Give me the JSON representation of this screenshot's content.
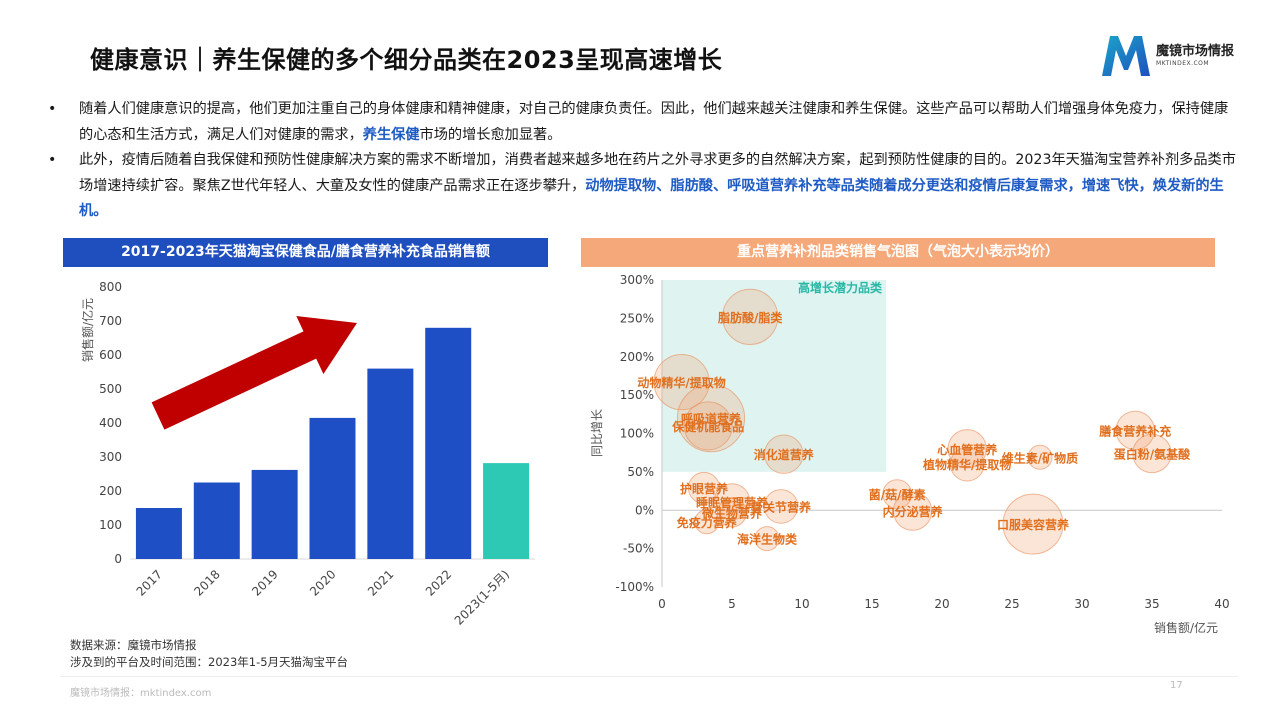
{
  "page": {
    "title": "健康意识｜养生保健的多个细分品类在2023呈现高速增长",
    "brand": "魔镜市场情报",
    "brand_site": "MKTINDEX.COM",
    "page_number": "17",
    "footer_site": "魔镜市场情报：mktindex.com",
    "source_line1": "数据来源：魔镜市场情报",
    "source_line2": "涉及到的平台及时间范围：2023年1-5月天猫淘宝平台"
  },
  "bullets": [
    {
      "dot": "•",
      "parts": [
        {
          "t": "随着人们健康意识的提高，他们更加注重自己的身体健康和精神健康，对自己的健康负责任。因此，他们越来越关注健康和养生保健。这些产品可以帮助人们增强身体免疫力，保持健康的心态和生活方式，满足人们对健康的需求，",
          "hl": false
        },
        {
          "t": "养生保健",
          "hl": true
        },
        {
          "t": "市场的增长愈加显著。",
          "hl": false
        }
      ]
    },
    {
      "dot": "•",
      "parts": [
        {
          "t": "此外，疫情后随着自我保健和预防性健康解决方案的需求不断增加，消费者越来越多地在药片之外寻求更多的自然解决方案，起到预防性健康的目的。2023年天猫淘宝营养补剂多品类市场增速持续扩容。聚焦Z世代年轻人、大童及女性的健康产品需求正在逐步攀升，",
          "hl": false
        },
        {
          "t": "动物提取物、脂肪酸、呼吸道营养补充等品类随着成分更迭和疫情后康复需求，增速飞快，焕发新的生机。",
          "hl": true
        }
      ]
    }
  ],
  "chart_data": [
    {
      "type": "bar",
      "title": "2017-2023年天猫淘宝保健食品/膳食营养补充食品销售额",
      "ylabel": "销售额/亿元",
      "ylim": [
        0,
        800
      ],
      "yticks": [
        0,
        100,
        200,
        300,
        400,
        500,
        600,
        700,
        800
      ],
      "categories": [
        "2017",
        "2018",
        "2019",
        "2020",
        "2021",
        "2022",
        "2023(1-5月)"
      ],
      "values": [
        150,
        225,
        262,
        415,
        560,
        680,
        282
      ],
      "colors": [
        "#1f4fc4",
        "#1f4fc4",
        "#1f4fc4",
        "#1f4fc4",
        "#1f4fc4",
        "#1f4fc4",
        "#2ec9b4"
      ],
      "arrow_color": "#c00000"
    },
    {
      "type": "scatter",
      "title": "重点营养补剂品类销售气泡图（气泡大小表示均价）",
      "xlabel": "销售额/亿元",
      "ylabel": "同比增长",
      "xlim": [
        0,
        40
      ],
      "ylim": [
        -100,
        300
      ],
      "xticks": [
        0,
        5,
        10,
        15,
        20,
        25,
        30,
        35,
        40
      ],
      "yticks": [
        "-100%",
        "-50%",
        "0%",
        "50%",
        "100%",
        "150%",
        "200%",
        "250%",
        "300%"
      ],
      "highlight_label": "高增长潜力品类",
      "highlight_region": {
        "x": [
          0,
          16
        ],
        "y": [
          50,
          300
        ]
      },
      "points": [
        {
          "name": "脂肪酸/脂类",
          "x": 6.3,
          "y": 252,
          "size": 2.3
        },
        {
          "name": "动物精华/提取物",
          "x": 1.4,
          "y": 167,
          "size": 2.3
        },
        {
          "name": "呼吸道营养",
          "x": 3.5,
          "y": 120,
          "size": 2.8
        },
        {
          "name": "保健机能食品",
          "x": 3.3,
          "y": 110,
          "size": 2.0
        },
        {
          "name": "消化道营养",
          "x": 8.7,
          "y": 73,
          "size": 1.6
        },
        {
          "name": "护眼营养",
          "x": 3.0,
          "y": 29,
          "size": 1.3
        },
        {
          "name": "睡眠管理营养",
          "x": 5.0,
          "y": 11,
          "size": 1.5
        },
        {
          "name": "骨关节营养",
          "x": 8.5,
          "y": 5,
          "size": 1.4
        },
        {
          "name": "微生物营养",
          "x": 5.0,
          "y": -3,
          "size": 1.2
        },
        {
          "name": "免疫力营养",
          "x": 3.2,
          "y": -15,
          "size": 1.0
        },
        {
          "name": "海洋生物类",
          "x": 7.5,
          "y": -37,
          "size": 1.0
        },
        {
          "name": "菌/菇/酵素",
          "x": 16.8,
          "y": 21,
          "size": 1.2
        },
        {
          "name": "内分泌营养",
          "x": 17.9,
          "y": -1,
          "size": 1.6
        },
        {
          "name": "心血管营养",
          "x": 21.8,
          "y": 80,
          "size": 1.6
        },
        {
          "name": "植物精华/提取物",
          "x": 21.8,
          "y": 60,
          "size": 1.4
        },
        {
          "name": "维生素/矿物质",
          "x": 27.0,
          "y": 69,
          "size": 1.0
        },
        {
          "name": "膳食营养补充",
          "x": 33.8,
          "y": 104,
          "size": 1.6
        },
        {
          "name": "蛋白粉/氨基酸",
          "x": 35.0,
          "y": 74,
          "size": 1.6
        },
        {
          "name": "口服美容营养",
          "x": 26.5,
          "y": -18,
          "size": 2.5
        }
      ]
    }
  ]
}
